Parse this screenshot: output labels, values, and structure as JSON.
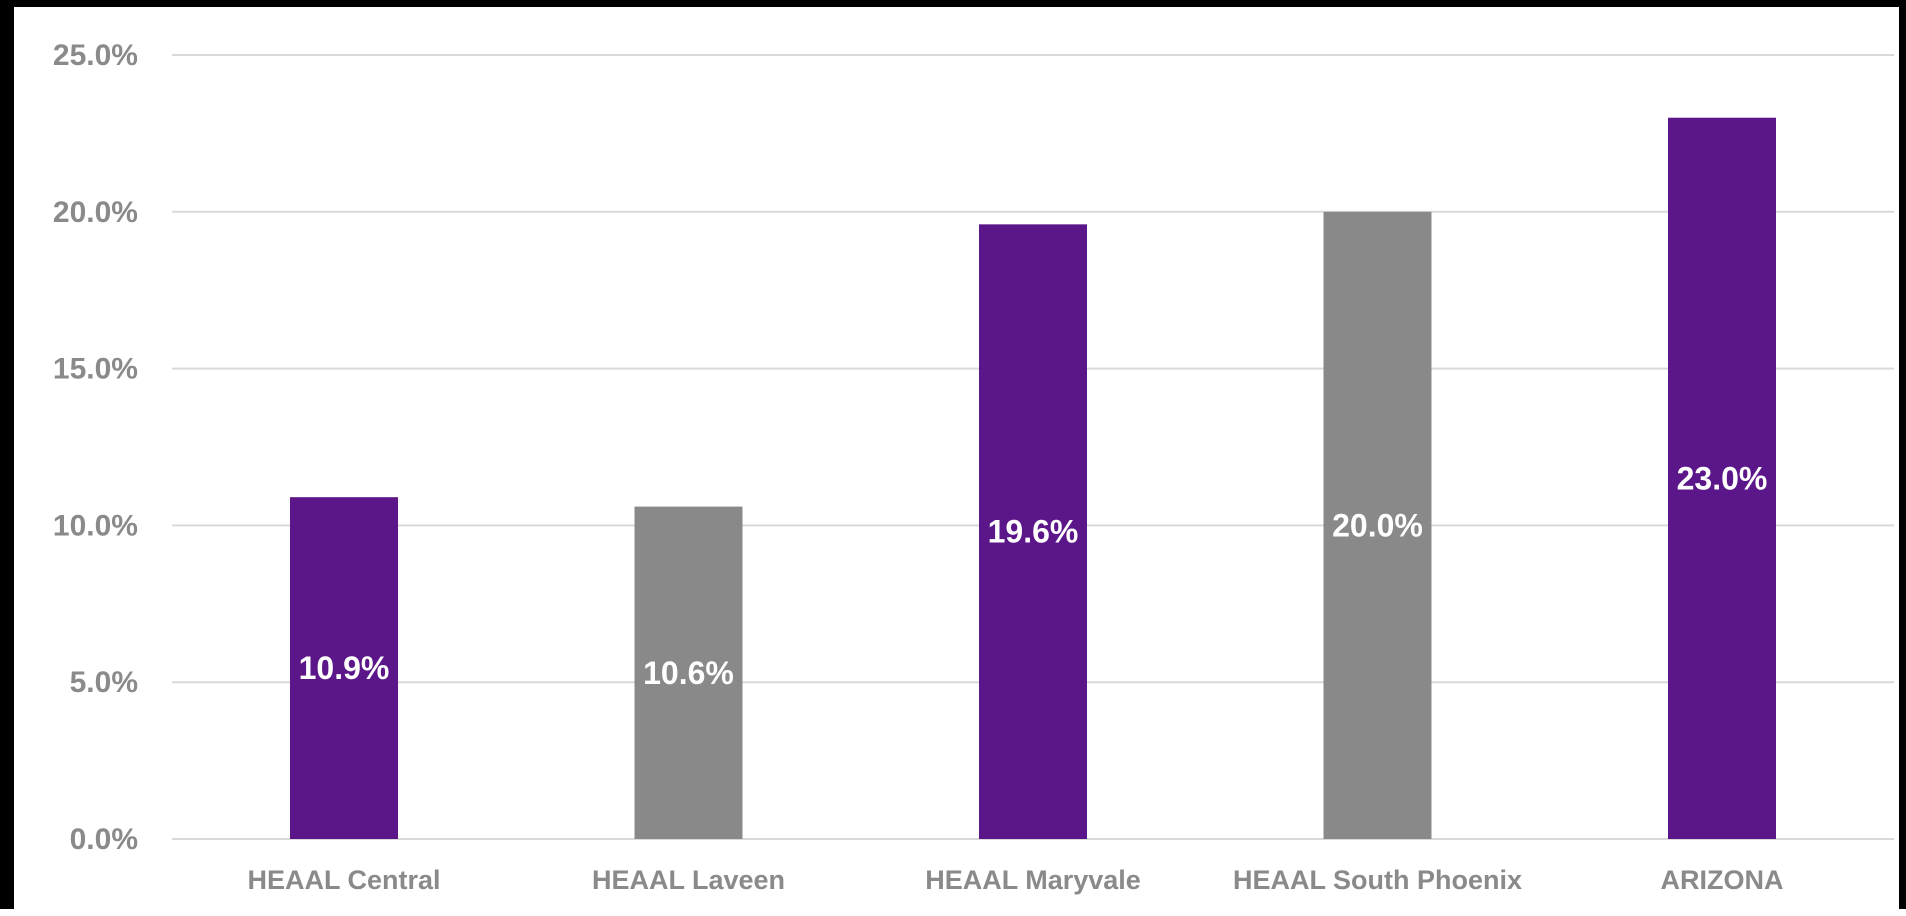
{
  "chart_data": {
    "type": "bar",
    "categories": [
      "HEAAL Central",
      "HEAAL Laveen",
      "HEAAL Maryvale",
      "HEAAL South Phoenix",
      "ARIZONA"
    ],
    "values": [
      10.9,
      10.6,
      19.6,
      20.0,
      23.0
    ],
    "data_labels": [
      "10.9%",
      "10.6%",
      "19.6%",
      "20.0%",
      "23.0%"
    ],
    "bar_colors": [
      "#5b1689",
      "#898989",
      "#5b1689",
      "#898989",
      "#5b1689"
    ],
    "yticks": [
      0,
      5,
      10,
      15,
      20,
      25
    ],
    "ytick_labels": [
      "0.0%",
      "5.0%",
      "10.0%",
      "15.0%",
      "20.0%",
      "25.0%"
    ],
    "ylim": [
      0,
      25
    ],
    "grid": true,
    "legend": "none",
    "title": "",
    "xlabel": "",
    "ylabel": ""
  },
  "colors": {
    "purple": "#5b1689",
    "gray": "#898989",
    "axis_text": "#8a8a8a",
    "gridline": "#d9d9d9",
    "frame": "#000000"
  }
}
